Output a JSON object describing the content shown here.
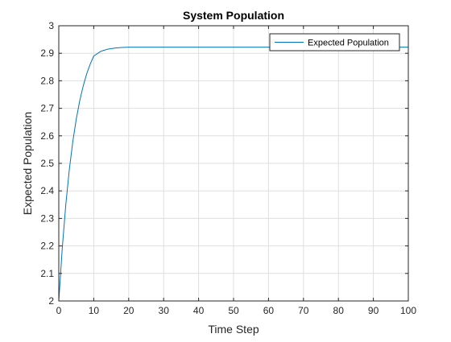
{
  "chart_data": {
    "type": "line",
    "title": "System Population",
    "xlabel": "Time Step",
    "ylabel": "Expected Population",
    "xlim": [
      0,
      100
    ],
    "ylim": [
      2,
      3
    ],
    "xticks": [
      0,
      10,
      20,
      30,
      40,
      50,
      60,
      70,
      80,
      90,
      100
    ],
    "yticks": [
      2,
      2.1,
      2.2,
      2.3,
      2.4,
      2.5,
      2.6,
      2.7,
      2.8,
      2.9,
      3
    ],
    "xtick_labels": [
      "0",
      "10",
      "20",
      "30",
      "40",
      "50",
      "60",
      "70",
      "80",
      "90",
      "100"
    ],
    "ytick_labels": [
      "2",
      "2.1",
      "2.2",
      "2.3",
      "2.4",
      "2.5",
      "2.6",
      "2.7",
      "2.8",
      "2.9",
      "3"
    ],
    "grid": true,
    "legend": {
      "position": "top-right",
      "entries": [
        "Expected Population"
      ]
    },
    "series": [
      {
        "name": "Expected Population",
        "color": "#0072BD",
        "x": [
          0,
          1,
          2,
          3,
          4,
          5,
          6,
          7,
          8,
          9,
          10,
          12,
          14,
          16,
          18,
          20,
          22,
          25,
          30,
          35,
          40,
          50,
          60,
          70,
          80,
          90,
          100
        ],
        "y": [
          2.0,
          2.193,
          2.349,
          2.476,
          2.578,
          2.661,
          2.728,
          2.782,
          2.826,
          2.861,
          2.89,
          2.907,
          2.915,
          2.919,
          2.921,
          2.922,
          2.922,
          2.922,
          2.922,
          2.922,
          2.922,
          2.922,
          2.922,
          2.922,
          2.922,
          2.922,
          2.922
        ]
      }
    ]
  }
}
